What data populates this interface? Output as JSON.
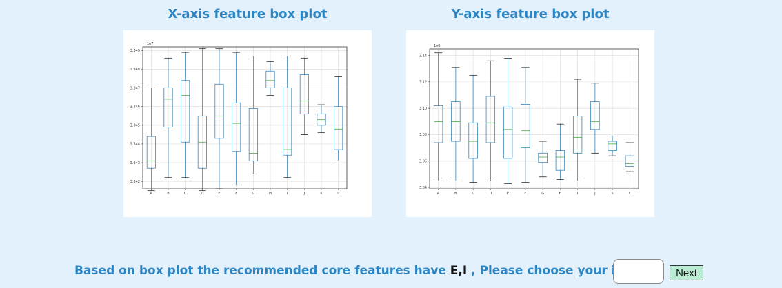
{
  "titles": {
    "x_plot": "X-axis feature box plot",
    "y_plot": "Y-axis feature box plot"
  },
  "prompt": {
    "text_before": "Based on box plot the recommended core features have",
    "core_features": "E,I",
    "text_after": ", Please choose your input",
    "input_value": "",
    "next_label": "Next"
  },
  "colors": {
    "background": "#e3f1fd",
    "heading": "#2d85c2",
    "box": "#1f77b4",
    "median": "#2ca02c",
    "next_button": "#b9ecd3"
  },
  "chart_data": [
    {
      "type": "box",
      "title": "X-axis feature box plot",
      "exponent_label": "1e7",
      "categories": [
        "A",
        "B",
        "C",
        "D",
        "E",
        "F",
        "G",
        "H",
        "I",
        "J",
        "K",
        "L"
      ],
      "yticks": [
        "3.342",
        "3.343",
        "3.344",
        "3.345",
        "3.346",
        "3.347",
        "3.348",
        "3.349"
      ],
      "ylim": [
        3.3416,
        3.3492
      ],
      "grid": true,
      "boxes": [
        {
          "min": 3.3415,
          "q1": 3.3427,
          "median": 3.3431,
          "q3": 3.3444,
          "max": 3.347
        },
        {
          "min": 3.3422,
          "q1": 3.3449,
          "median": 3.3464,
          "q3": 3.347,
          "max": 3.3486
        },
        {
          "min": 3.3422,
          "q1": 3.3441,
          "median": 3.3466,
          "q3": 3.3474,
          "max": 3.3489
        },
        {
          "min": 3.3415,
          "q1": 3.3427,
          "median": 3.3441,
          "q3": 3.3455,
          "max": 3.3491
        },
        {
          "min": 3.3416,
          "q1": 3.3443,
          "median": 3.3455,
          "q3": 3.3472,
          "max": 3.3491
        },
        {
          "min": 3.3418,
          "q1": 3.3436,
          "median": 3.3451,
          "q3": 3.3462,
          "max": 3.3489
        },
        {
          "min": 3.3424,
          "q1": 3.3431,
          "median": 3.3435,
          "q3": 3.3459,
          "max": 3.3487
        },
        {
          "min": 3.3466,
          "q1": 3.347,
          "median": 3.3474,
          "q3": 3.3479,
          "max": 3.3484
        },
        {
          "min": 3.3422,
          "q1": 3.3434,
          "median": 3.3437,
          "q3": 3.347,
          "max": 3.3487
        },
        {
          "min": 3.3445,
          "q1": 3.3456,
          "median": 3.3463,
          "q3": 3.3477,
          "max": 3.3486
        },
        {
          "min": 3.3446,
          "q1": 3.345,
          "median": 3.3453,
          "q3": 3.3456,
          "max": 3.3461
        },
        {
          "min": 3.3431,
          "q1": 3.3437,
          "median": 3.3448,
          "q3": 3.346,
          "max": 3.3476
        }
      ]
    },
    {
      "type": "box",
      "title": "Y-axis feature box plot",
      "exponent_label": "1e6",
      "categories": [
        "A",
        "B",
        "C",
        "D",
        "E",
        "F",
        "G",
        "H",
        "I",
        "J",
        "K",
        "L"
      ],
      "yticks": [
        "3.04",
        "3.06",
        "3.08",
        "3.10",
        "3.12",
        "3.14"
      ],
      "ylim": [
        3.039,
        3.145
      ],
      "grid": true,
      "boxes": [
        {
          "min": 3.045,
          "q1": 3.074,
          "median": 3.09,
          "q3": 3.102,
          "max": 3.142
        },
        {
          "min": 3.045,
          "q1": 3.075,
          "median": 3.09,
          "q3": 3.105,
          "max": 3.131
        },
        {
          "min": 3.044,
          "q1": 3.062,
          "median": 3.075,
          "q3": 3.089,
          "max": 3.125
        },
        {
          "min": 3.045,
          "q1": 3.074,
          "median": 3.089,
          "q3": 3.109,
          "max": 3.136
        },
        {
          "min": 3.043,
          "q1": 3.062,
          "median": 3.084,
          "q3": 3.101,
          "max": 3.138
        },
        {
          "min": 3.044,
          "q1": 3.07,
          "median": 3.083,
          "q3": 3.103,
          "max": 3.131
        },
        {
          "min": 3.048,
          "q1": 3.059,
          "median": 3.063,
          "q3": 3.066,
          "max": 3.075
        },
        {
          "min": 3.046,
          "q1": 3.053,
          "median": 3.063,
          "q3": 3.068,
          "max": 3.088
        },
        {
          "min": 3.045,
          "q1": 3.066,
          "median": 3.078,
          "q3": 3.094,
          "max": 3.122
        },
        {
          "min": 3.066,
          "q1": 3.084,
          "median": 3.09,
          "q3": 3.105,
          "max": 3.119
        },
        {
          "min": 3.064,
          "q1": 3.068,
          "median": 3.073,
          "q3": 3.075,
          "max": 3.079
        },
        {
          "min": 3.052,
          "q1": 3.056,
          "median": 3.058,
          "q3": 3.064,
          "max": 3.074
        }
      ]
    }
  ]
}
